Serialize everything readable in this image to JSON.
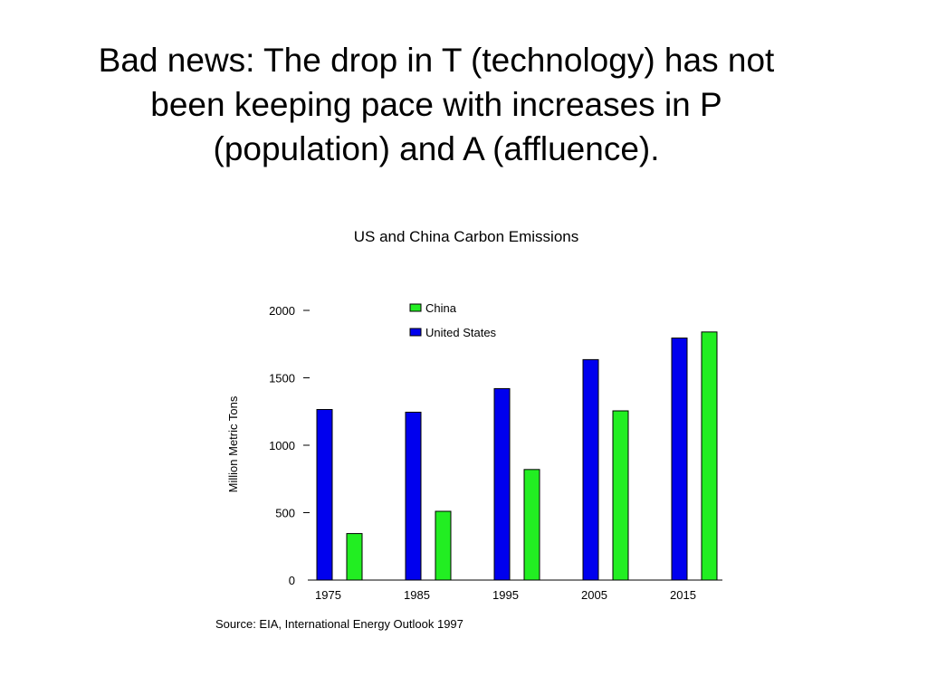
{
  "slide": {
    "title": "Bad news: The drop in T (technology) has not\nbeen keeping pace with increases in P\n(population) and A (affluence)."
  },
  "chart_data": {
    "type": "bar",
    "title": "US and China Carbon Emissions",
    "ylabel": "Million Metric Tons",
    "xlabel": "",
    "ylim": [
      0,
      2000
    ],
    "yticks": [
      0,
      500,
      1000,
      1500,
      2000
    ],
    "categories": [
      "1975",
      "1985",
      "1995",
      "2005",
      "2015"
    ],
    "series": [
      {
        "name": "United States",
        "color": "#0000ee",
        "values": [
          1265,
          1245,
          1420,
          1635,
          1795
        ]
      },
      {
        "name": "China",
        "color": "#22ee22",
        "values": [
          345,
          510,
          820,
          1255,
          1840
        ]
      }
    ],
    "legend": {
      "position": "top-left",
      "order": [
        "China",
        "United States"
      ]
    },
    "grid": false,
    "source": "Source:  EIA, International Energy Outlook 1997"
  }
}
